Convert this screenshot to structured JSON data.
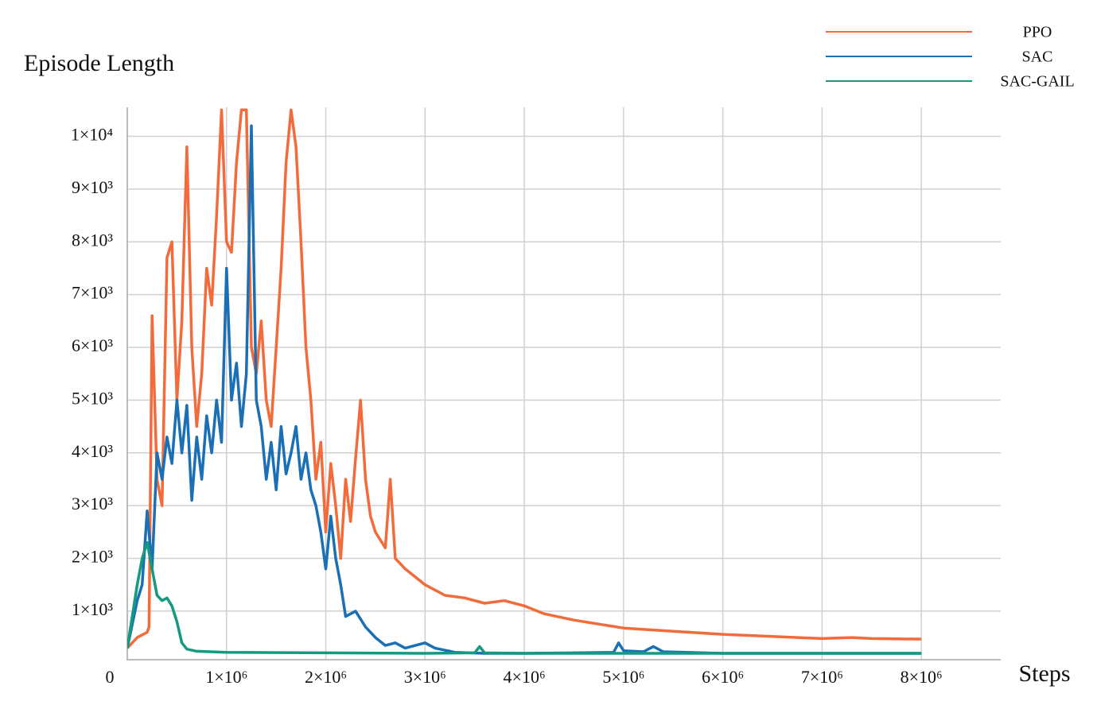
{
  "chart_data": {
    "type": "line",
    "title": "Episode Length",
    "x_label": "Steps",
    "xlim": [
      0,
      8800000
    ],
    "ylim": [
      80,
      10550
    ],
    "xticks": [
      0,
      {
        "value": 1000000,
        "label": "1×10⁶"
      },
      {
        "value": 2000000,
        "label": "2×10⁶"
      },
      {
        "value": 3000000,
        "label": "3×10⁶"
      },
      {
        "value": 4000000,
        "label": "4×10⁶"
      },
      {
        "value": 5000000,
        "label": "5×10⁶"
      },
      {
        "value": 6000000,
        "label": "6×10⁶"
      },
      {
        "value": 7000000,
        "label": "7×10⁶"
      },
      {
        "value": 8000000,
        "label": "8×10⁶"
      }
    ],
    "yticks": [
      {
        "value": 1000,
        "label": "1×10³"
      },
      {
        "value": 2000,
        "label": "2×10³"
      },
      {
        "value": 3000,
        "label": "3×10³"
      },
      {
        "value": 4000,
        "label": "4×10³"
      },
      {
        "value": 5000,
        "label": "5×10³"
      },
      {
        "value": 6000,
        "label": "6×10³"
      },
      {
        "value": 7000,
        "label": "7×10³"
      },
      {
        "value": 8000,
        "label": "8×10³"
      },
      {
        "value": 9000,
        "label": "9×10³"
      },
      {
        "value": 10000,
        "label": "1×10⁴"
      }
    ],
    "grid": true,
    "legend": "top-right",
    "series": [
      {
        "name": "PPO",
        "color": "#f26b3a",
        "x": [
          0,
          100000,
          200000,
          220000,
          250000,
          300000,
          350000,
          400000,
          450000,
          500000,
          550000,
          600000,
          650000,
          700000,
          750000,
          800000,
          850000,
          900000,
          950000,
          1000000,
          1050000,
          1100000,
          1150000,
          1200000,
          1250000,
          1300000,
          1350000,
          1400000,
          1450000,
          1500000,
          1550000,
          1600000,
          1650000,
          1700000,
          1750000,
          1800000,
          1850000,
          1900000,
          1950000,
          2000000,
          2050000,
          2100000,
          2150000,
          2200000,
          2250000,
          2300000,
          2350000,
          2400000,
          2450000,
          2500000,
          2600000,
          2650000,
          2700000,
          2800000,
          3000000,
          3200000,
          3400000,
          3600000,
          3800000,
          4000000,
          4200000,
          4500000,
          5000000,
          5500000,
          6000000,
          6500000,
          7000000,
          7300000,
          7500000,
          8000000
        ],
        "values": [
          300,
          500,
          600,
          700,
          6600,
          3500,
          3000,
          7700,
          8000,
          5000,
          6500,
          9800,
          6000,
          4500,
          5500,
          7500,
          6800,
          8500,
          10500,
          8000,
          7800,
          9500,
          10500,
          10500,
          6000,
          5500,
          6500,
          5000,
          4500,
          6000,
          7500,
          9500,
          10500,
          9800,
          8000,
          6000,
          5000,
          3500,
          4200,
          2500,
          3800,
          3000,
          2000,
          3500,
          2700,
          3900,
          5000,
          3500,
          2800,
          2500,
          2200,
          3500,
          2000,
          1800,
          1500,
          1300,
          1250,
          1150,
          1200,
          1100,
          950,
          830,
          680,
          620,
          560,
          520,
          480,
          500,
          480,
          470
        ]
      },
      {
        "name": "SAC",
        "color": "#1a6fb5",
        "x": [
          0,
          100000,
          150000,
          200000,
          250000,
          300000,
          350000,
          400000,
          450000,
          500000,
          550000,
          600000,
          650000,
          700000,
          750000,
          800000,
          850000,
          900000,
          950000,
          1000000,
          1050000,
          1100000,
          1150000,
          1200000,
          1250000,
          1300000,
          1350000,
          1400000,
          1450000,
          1500000,
          1550000,
          1600000,
          1650000,
          1700000,
          1750000,
          1800000,
          1850000,
          1900000,
          1950000,
          2000000,
          2050000,
          2100000,
          2150000,
          2200000,
          2300000,
          2400000,
          2500000,
          2600000,
          2700000,
          2800000,
          3000000,
          3100000,
          3300000,
          3600000,
          4000000,
          4500000,
          4900000,
          4950000,
          5000000,
          5200000,
          5300000,
          5400000,
          6000000,
          7000000,
          8000000
        ],
        "values": [
          300,
          1200,
          1500,
          2900,
          1800,
          4000,
          3500,
          4300,
          3800,
          5000,
          4000,
          4900,
          3100,
          4300,
          3500,
          4700,
          4000,
          5000,
          4200,
          7500,
          5000,
          5700,
          4500,
          5500,
          10200,
          5000,
          4500,
          3500,
          4200,
          3300,
          4500,
          3600,
          4000,
          4500,
          3500,
          4000,
          3300,
          3000,
          2500,
          1800,
          2800,
          2000,
          1500,
          900,
          1000,
          700,
          500,
          350,
          400,
          300,
          400,
          300,
          220,
          200,
          200,
          210,
          220,
          400,
          250,
          230,
          330,
          230,
          200,
          200,
          200
        ]
      },
      {
        "name": "SAC-GAIL",
        "color": "#159a80",
        "x": [
          0,
          100000,
          150000,
          200000,
          250000,
          300000,
          350000,
          400000,
          450000,
          500000,
          550000,
          600000,
          700000,
          1000000,
          2000000,
          3000000,
          3500000,
          3550000,
          3600000,
          4000000,
          5000000,
          6000000,
          7000000,
          8000000
        ],
        "values": [
          300,
          1500,
          2000,
          2300,
          1800,
          1300,
          1200,
          1250,
          1100,
          800,
          400,
          280,
          240,
          220,
          210,
          200,
          210,
          330,
          210,
          200,
          200,
          200,
          200,
          200
        ]
      }
    ]
  }
}
